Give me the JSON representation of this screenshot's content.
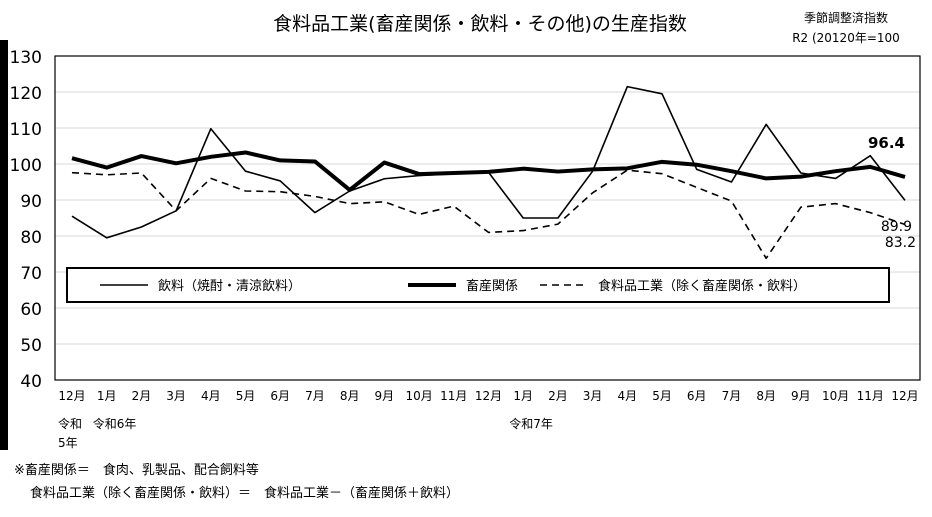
{
  "chart_data": {
    "type": "line",
    "title": "食料品工業(畜産関係・飲料・その他)の生産指数",
    "note_lines": [
      "季節調整済指数",
      "R2 (20120年=100"
    ],
    "ylim": [
      40,
      130
    ],
    "yticks": [
      40,
      50,
      60,
      70,
      80,
      90,
      100,
      110,
      120,
      130
    ],
    "grid": true,
    "legend_placement": "inside-lower",
    "categories": [
      "12月",
      "1月",
      "2月",
      "3月",
      "4月",
      "5月",
      "6月",
      "7月",
      "8月",
      "9月",
      "10月",
      "11月",
      "12月",
      "1月",
      "2月",
      "3月",
      "4月",
      "5月",
      "6月",
      "7月",
      "8月",
      "9月",
      "10月",
      "11月",
      "12月"
    ],
    "year_labels": [
      {
        "text": "令和",
        "index": 0,
        "line": 1
      },
      {
        "text": "5年",
        "index": 0,
        "line": 2
      },
      {
        "text": "令和6年",
        "index": 1,
        "line": 1
      },
      {
        "text": "令和7年",
        "index": 13,
        "line": 1
      }
    ],
    "series": [
      {
        "name": "飲料（焼酎・清涼飲料）",
        "style": "thin-solid",
        "values": [
          85.5,
          79.5,
          82.5,
          87,
          109.8,
          98,
          95.3,
          86.5,
          92.5,
          95.9,
          96.8,
          97.3,
          97.7,
          85,
          85,
          98,
          121.5,
          119.5,
          98.5,
          95,
          111,
          97.5,
          96,
          102.3,
          89.9
        ]
      },
      {
        "name": "畜産関係",
        "style": "thick-solid",
        "values": [
          101.6,
          99,
          102.2,
          100.2,
          102,
          103.2,
          101,
          100.7,
          92.8,
          100.4,
          97.2,
          97.5,
          97.8,
          98.7,
          97.9,
          98.5,
          98.8,
          100.6,
          99.8,
          98,
          96,
          96.5,
          98,
          99.2,
          96.4
        ]
      },
      {
        "name": "食料品工業（除く畜産関係・飲料）",
        "style": "dashed",
        "values": [
          97.6,
          97,
          97.5,
          87,
          96,
          92.5,
          92.3,
          91,
          89,
          89.5,
          86,
          88.3,
          81,
          81.5,
          83.3,
          92,
          98.3,
          97.3,
          93.5,
          89.7,
          73.8,
          88,
          89,
          86.5,
          83.2
        ]
      }
    ],
    "end_labels": [
      "96.4",
      "89.9",
      "83.2"
    ],
    "color": "#000000"
  },
  "footnotes": [
    "※畜産関係＝　食肉、乳製品、配合飼料等",
    "食料品工業（除く畜産関係・飲料）＝　食料品工業－（畜産関係＋飲料）"
  ]
}
